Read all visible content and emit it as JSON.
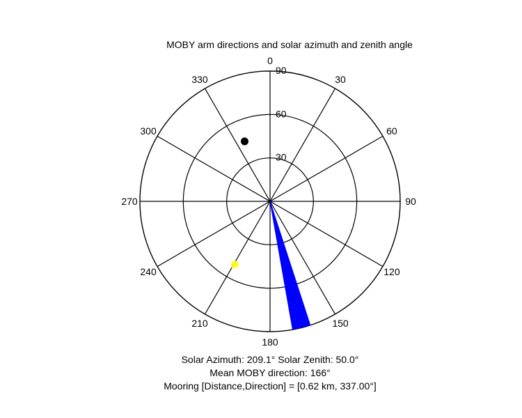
{
  "chart_data": {
    "type": "polar",
    "title": "MOBY arm directions and solar azimuth and zenith angle",
    "angular_ticks": [
      "0",
      "30",
      "60",
      "90",
      "120",
      "150",
      "180",
      "210",
      "240",
      "270",
      "300",
      "330"
    ],
    "radial_ticks": [
      30,
      60,
      90
    ],
    "radial_max": 90,
    "grid": true,
    "series": [
      {
        "kind": "wedge",
        "theta_range": [
          162,
          170
        ],
        "r": 90,
        "color": "#0000ff"
      },
      {
        "kind": "point",
        "marker": "asterisk",
        "theta": 209.1,
        "r": 50.0,
        "color": "#ffff00"
      },
      {
        "kind": "point",
        "marker": "filled-circle",
        "theta": 337.0,
        "r": 45,
        "color": "#000000"
      }
    ]
  },
  "captions": {
    "solar": "Solar Azimuth: 209.1°   Solar Zenith: 50.0°",
    "mean_direction": "Mean MOBY direction: 166°",
    "mooring": "Mooring [Distance,Direction] = [0.62 km, 337.00°]"
  }
}
